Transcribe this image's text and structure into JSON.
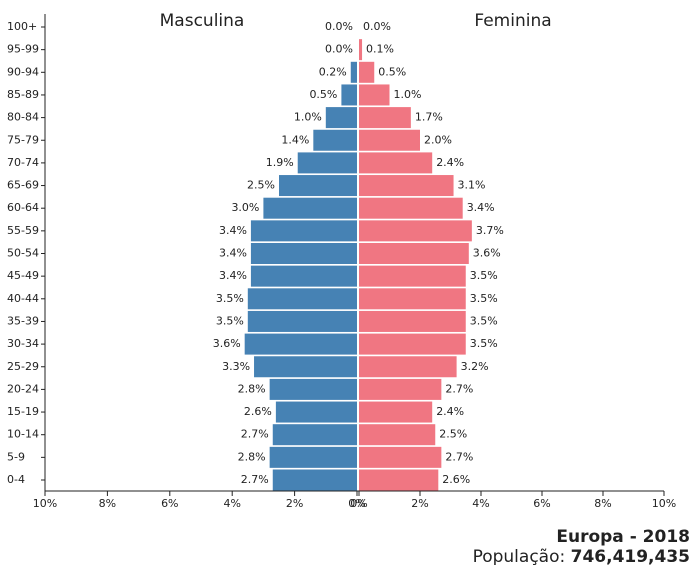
{
  "chart_data": {
    "type": "pyramid",
    "title": "Europa - 2018",
    "population_label": "População:",
    "population": "746,419,435",
    "categories": [
      "100+",
      "95-99",
      "90-94",
      "85-89",
      "80-84",
      "75-79",
      "70-74",
      "65-69",
      "60-64",
      "55-59",
      "50-54",
      "45-49",
      "40-44",
      "35-39",
      "30-34",
      "25-29",
      "20-24",
      "15-19",
      "10-14",
      "5-9",
      "0-4"
    ],
    "series": [
      {
        "name": "Masculina",
        "color": "#4682b4",
        "side": "left",
        "values": [
          0.0,
          0.0,
          0.2,
          0.5,
          1.0,
          1.4,
          1.9,
          2.5,
          3.0,
          3.4,
          3.4,
          3.4,
          3.5,
          3.5,
          3.6,
          3.3,
          2.8,
          2.6,
          2.7,
          2.8,
          2.7
        ],
        "value_labels": [
          "0.0%",
          "0.0%",
          "0.2%",
          "0.5%",
          "1.0%",
          "1.4%",
          "1.9%",
          "2.5%",
          "3.0%",
          "3.4%",
          "3.4%",
          "3.4%",
          "3.5%",
          "3.5%",
          "3.6%",
          "3.3%",
          "2.8%",
          "2.6%",
          "2.7%",
          "2.8%",
          "2.7%"
        ],
        "xticks": [
          {
            "value": 10,
            "label": "10%"
          },
          {
            "value": 8,
            "label": "8%"
          },
          {
            "value": 6,
            "label": "6%"
          },
          {
            "value": 4,
            "label": "4%"
          },
          {
            "value": 2,
            "label": "2%"
          },
          {
            "value": 0,
            "label": "0%"
          }
        ]
      },
      {
        "name": "Feminina",
        "color": "#f07682",
        "side": "right",
        "values": [
          0.0,
          0.1,
          0.5,
          1.0,
          1.7,
          2.0,
          2.4,
          3.1,
          3.4,
          3.7,
          3.6,
          3.5,
          3.5,
          3.5,
          3.5,
          3.2,
          2.7,
          2.4,
          2.5,
          2.7,
          2.6
        ],
        "value_labels": [
          "0.0%",
          "0.1%",
          "0.5%",
          "1.0%",
          "1.7%",
          "2.0%",
          "2.4%",
          "3.1%",
          "3.4%",
          "3.7%",
          "3.6%",
          "3.5%",
          "3.5%",
          "3.5%",
          "3.5%",
          "3.2%",
          "2.7%",
          "2.4%",
          "2.5%",
          "2.7%",
          "2.6%"
        ],
        "xticks": [
          {
            "value": 0,
            "label": "0%"
          },
          {
            "value": 2,
            "label": "2%"
          },
          {
            "value": 4,
            "label": "4%"
          },
          {
            "value": 6,
            "label": "6%"
          },
          {
            "value": 8,
            "label": "8%"
          },
          {
            "value": 10,
            "label": "10%"
          }
        ]
      }
    ],
    "xlim": [
      0,
      10
    ]
  }
}
